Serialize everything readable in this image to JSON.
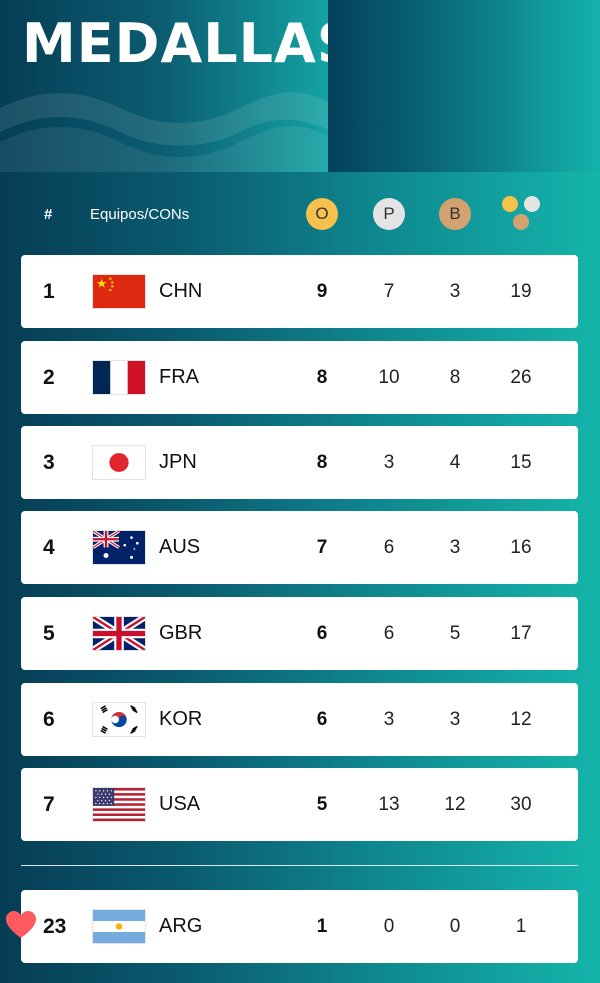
{
  "header": {
    "title": "MEDALLAS"
  },
  "columns": {
    "rank": "#",
    "team": "Equipos/CONs",
    "gold": "O",
    "silver": "P",
    "bronze": "B"
  },
  "colors": {
    "gold": "#f7c14d",
    "silver": "#e4e4e4",
    "bronze": "#d3a271"
  },
  "rows": [
    {
      "rank": "1",
      "code": "CHN",
      "gold": "9",
      "silver": "7",
      "bronze": "3",
      "total": "19"
    },
    {
      "rank": "2",
      "code": "FRA",
      "gold": "8",
      "silver": "10",
      "bronze": "8",
      "total": "26"
    },
    {
      "rank": "3",
      "code": "JPN",
      "gold": "8",
      "silver": "3",
      "bronze": "4",
      "total": "15"
    },
    {
      "rank": "4",
      "code": "AUS",
      "gold": "7",
      "silver": "6",
      "bronze": "3",
      "total": "16"
    },
    {
      "rank": "5",
      "code": "GBR",
      "gold": "6",
      "silver": "6",
      "bronze": "5",
      "total": "17"
    },
    {
      "rank": "6",
      "code": "KOR",
      "gold": "6",
      "silver": "3",
      "bronze": "3",
      "total": "12"
    },
    {
      "rank": "7",
      "code": "USA",
      "gold": "5",
      "silver": "13",
      "bronze": "12",
      "total": "30"
    }
  ],
  "favorite": {
    "rank": "23",
    "code": "ARG",
    "gold": "1",
    "silver": "0",
    "bronze": "0",
    "total": "1",
    "icon": "heart-icon"
  }
}
